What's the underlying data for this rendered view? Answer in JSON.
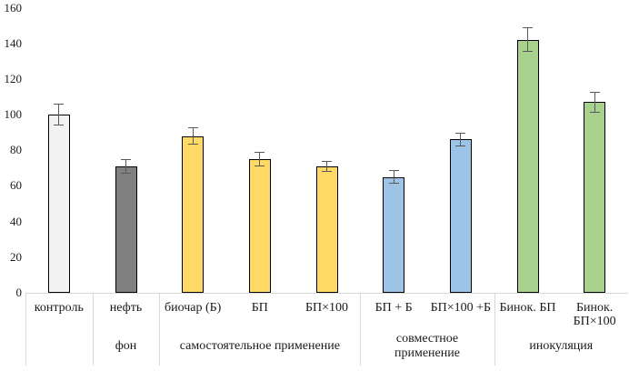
{
  "chart_data": {
    "type": "bar",
    "title": "",
    "xlabel": "",
    "ylabel": "",
    "ylim": [
      0,
      160
    ],
    "ytick_interval": 20,
    "ytick_labels": [
      "0",
      "20",
      "40",
      "60",
      "80",
      "100",
      "120",
      "140",
      "160"
    ],
    "grid": false,
    "legend": "none",
    "categories": [
      "контроль",
      "нефть",
      "биочар (Б)",
      "БП",
      "БП×100",
      "БП + Б",
      "БП×100 +Б",
      "Бинок. БП",
      "Бинок. БП×100"
    ],
    "values": [
      100,
      71,
      88,
      75,
      71,
      65,
      86,
      142,
      107
    ],
    "errors": [
      6,
      4,
      5,
      4,
      3,
      4,
      4,
      7,
      6
    ],
    "bar_colors": [
      "#f2f2f2",
      "#808080",
      "#ffd966",
      "#ffd966",
      "#ffd966",
      "#9dc3e6",
      "#9dc3e6",
      "#a9d18e",
      "#a9d18e"
    ],
    "bar_outline_color": "#000000",
    "error_bar_color": "#595959",
    "axis_line_color": "#d9d9d9",
    "text_color": "#1a1a1a",
    "group_labels": [
      {
        "label": "",
        "start": 0,
        "end": 0
      },
      {
        "label": "фон",
        "start": 1,
        "end": 1
      },
      {
        "label": "самостоятельное применение",
        "start": 2,
        "end": 4
      },
      {
        "label": "совместное применение",
        "start": 5,
        "end": 6
      },
      {
        "label": "инокуляция",
        "start": 7,
        "end": 8
      }
    ]
  }
}
